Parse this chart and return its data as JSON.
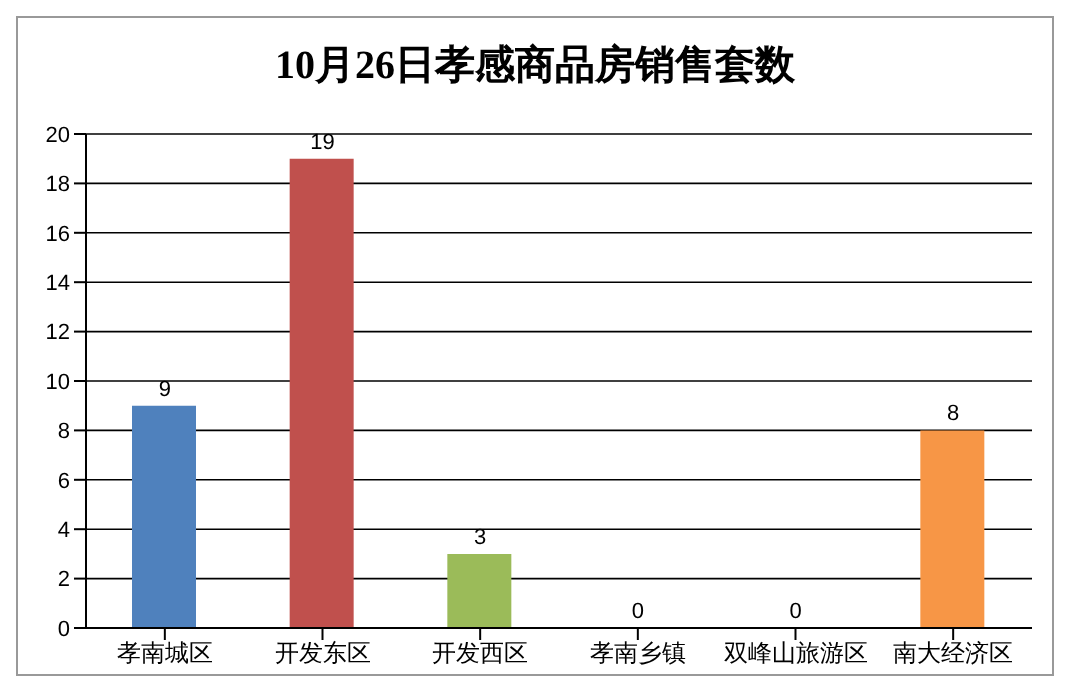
{
  "chart_data": {
    "type": "bar",
    "title": "10月26日孝感商品房销售套数",
    "categories": [
      "孝南城区",
      "开发东区",
      "开发西区",
      "孝南乡镇",
      "双峰山旅游区",
      "南大经济区"
    ],
    "values": [
      9,
      19,
      3,
      0,
      0,
      8
    ],
    "colors": [
      "#4f81bd",
      "#c0504d",
      "#9bbb59",
      "#8064a2",
      "#4bacc6",
      "#f79646"
    ],
    "ylim": [
      0,
      20
    ],
    "yticks": [
      0,
      2,
      4,
      6,
      8,
      10,
      12,
      14,
      16,
      18,
      20
    ],
    "grid": "y",
    "data_labels": true,
    "legend": false
  }
}
